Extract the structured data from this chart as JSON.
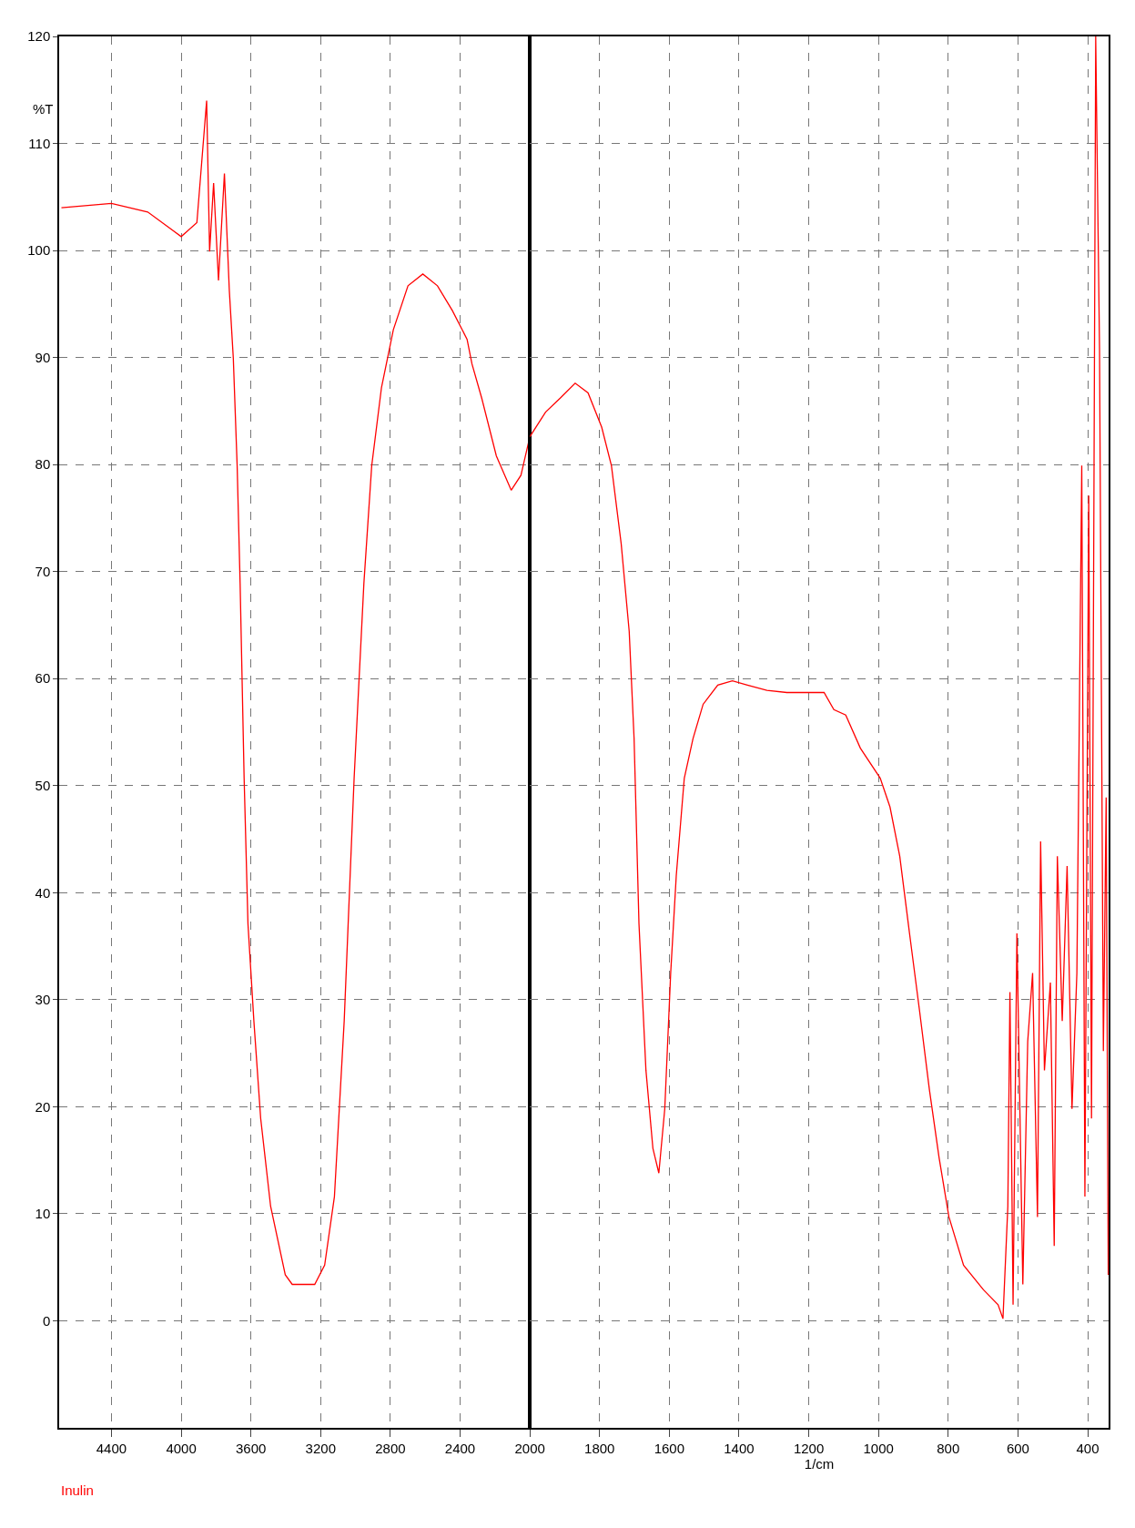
{
  "chart_data": [
    {
      "type": "line",
      "ylabel": "%T",
      "annotations": [
        "Inulin"
      ],
      "series": [
        {
          "color": "#ff0000",
          "x": [
            4687,
            4400,
            4192,
            4000,
            3910,
            3854,
            3837,
            3814,
            3786,
            3752,
            3724,
            3701,
            3679,
            3662,
            3639,
            3617,
            3583,
            3544,
            3487,
            3403,
            3363,
            3234,
            3177,
            3121,
            3065,
            3008,
            2952,
            2907,
            2851,
            2783,
            2699,
            2614,
            2530,
            2445,
            2360,
            2332,
            2276,
            2192,
            2107,
            2051,
            2000
          ],
          "values": [
            104.0,
            104.4,
            103.6,
            101.3,
            102.6,
            114.0,
            99.9,
            106.3,
            97.2,
            107.2,
            96.3,
            89.9,
            79.9,
            68.9,
            50.7,
            37.1,
            28.0,
            18.9,
            10.7,
            4.3,
            3.4,
            3.4,
            5.2,
            11.6,
            28.0,
            50.7,
            68.9,
            79.9,
            87.2,
            92.6,
            96.7,
            97.8,
            96.7,
            94.4,
            91.7,
            89.4,
            86.2,
            80.8,
            77.6,
            79.0,
            82.6
          ]
        }
      ],
      "xlim": [
        4700,
        2000
      ],
      "xticks": [
        4400,
        4000,
        3600,
        3200,
        2800,
        2400,
        2000
      ],
      "ylim": [
        -10,
        120
      ],
      "yticks": [
        0,
        10,
        20,
        30,
        40,
        50,
        60,
        70,
        80,
        90,
        100,
        110,
        120
      ],
      "grid": true
    },
    {
      "type": "line",
      "xlabel": "1/cm",
      "tick_labels": "x",
      "series": [
        {
          "color": "#ff0000",
          "x": [
            2000,
            1955,
            1913,
            1870,
            1833,
            1794,
            1766,
            1738,
            1715,
            1701,
            1687,
            1667,
            1647,
            1630,
            1613,
            1596,
            1580,
            1557,
            1532,
            1503,
            1461,
            1419,
            1376,
            1320,
            1263,
            1207,
            1156,
            1128,
            1094,
            1052,
            995,
            967,
            939,
            911,
            882,
            854,
            826,
            798,
            756,
            699,
            657,
            643,
            629,
            623,
            614,
            603,
            586,
            572,
            558,
            544,
            535,
            524,
            507,
            496,
            487,
            473,
            459,
            445,
            431,
            417,
            408,
            397,
            389,
            377,
            366,
            355,
            347,
            341
          ],
          "values": [
            82.6,
            84.9,
            86.2,
            87.6,
            86.7,
            83.5,
            79.9,
            72.6,
            64.4,
            54.4,
            37.1,
            23.4,
            16.1,
            13.8,
            19.8,
            32.5,
            41.6,
            50.7,
            54.4,
            57.6,
            59.4,
            59.8,
            59.4,
            58.9,
            58.7,
            58.7,
            58.7,
            57.1,
            56.6,
            53.5,
            50.7,
            48.0,
            43.4,
            36.2,
            28.9,
            21.6,
            15.2,
            9.7,
            5.2,
            2.9,
            1.5,
            0.2,
            10.7,
            30.7,
            1.5,
            36.2,
            3.4,
            26.1,
            32.5,
            9.7,
            44.8,
            23.4,
            31.6,
            7.0,
            43.4,
            28.0,
            42.5,
            19.8,
            32.5,
            79.9,
            11.6,
            77.1,
            18.9,
            120,
            90.8,
            25.2,
            48.9,
            4.3
          ]
        }
      ],
      "xlim": [
        2000,
        340
      ],
      "xticks": [
        1800,
        1600,
        1400,
        1200,
        1000,
        800,
        600,
        400
      ],
      "ylim": [
        -10,
        120
      ],
      "yticks": [
        0,
        10,
        20,
        30,
        40,
        50,
        60,
        70,
        80,
        90,
        100,
        110,
        120
      ],
      "grid": true
    }
  ]
}
